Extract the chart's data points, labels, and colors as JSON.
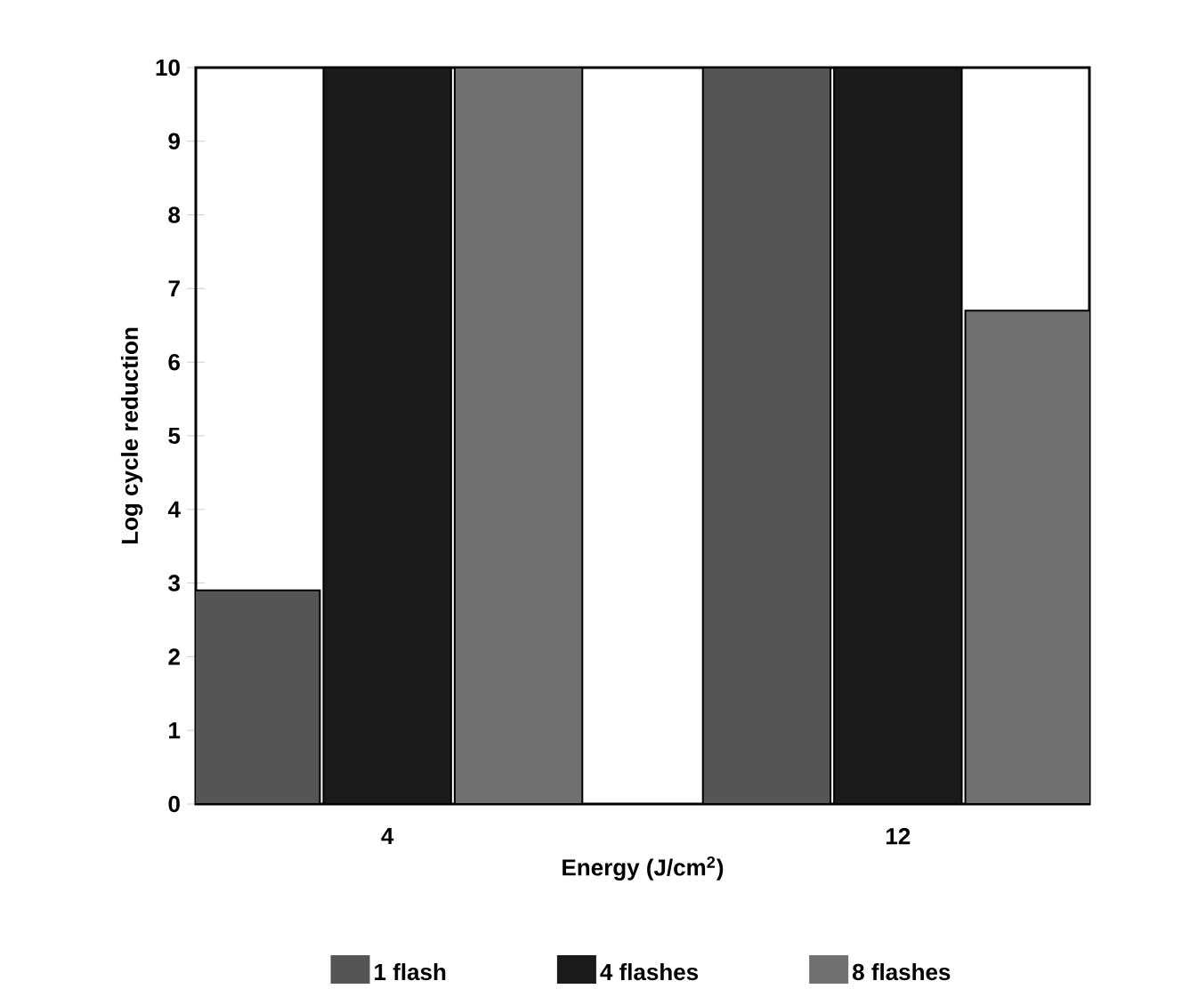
{
  "chart_data": {
    "type": "bar",
    "xlabel": "Energy (J/cm$^{2}$)",
    "ylabel": "Log cycle reduction",
    "categories": [
      "4",
      "12"
    ],
    "series": [
      {
        "name": "1 flash",
        "color": "#555555",
        "values": [
          2.9,
          10
        ]
      },
      {
        "name": "4 flashes",
        "color": "#1a1a1a",
        "values": [
          10,
          10
        ]
      },
      {
        "name": "8 flashes",
        "color": "#707070",
        "values": [
          10,
          6.7
        ]
      }
    ],
    "ylim": [
      0,
      10
    ],
    "yticks": [
      0,
      1,
      2,
      3,
      4,
      5,
      6,
      7,
      8,
      9,
      10
    ],
    "legend": "bottom",
    "grid": false
  }
}
